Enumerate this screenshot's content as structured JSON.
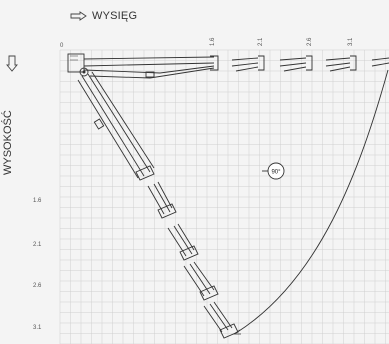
{
  "header": {
    "reach_label": "WYSIĘG",
    "height_label": "WYSOKOŚĆ",
    "reach_arrow_icon": "outline-right-arrow-icon",
    "height_arrow_icon": "outline-down-arrow-icon"
  },
  "axes": {
    "origin_label": "0",
    "reach_ticks": [
      "1.6",
      "2.1",
      "2.6",
      "3.1"
    ],
    "height_ticks": [
      "1.6",
      "2.1",
      "2.6",
      "3.1"
    ]
  },
  "rotation_badge": {
    "label": "90°",
    "icon": "rotation-indicator-icon"
  },
  "colors": {
    "grid": "#cfcfcf",
    "line": "#2a2a2a",
    "background": "#f4f4f4"
  }
}
